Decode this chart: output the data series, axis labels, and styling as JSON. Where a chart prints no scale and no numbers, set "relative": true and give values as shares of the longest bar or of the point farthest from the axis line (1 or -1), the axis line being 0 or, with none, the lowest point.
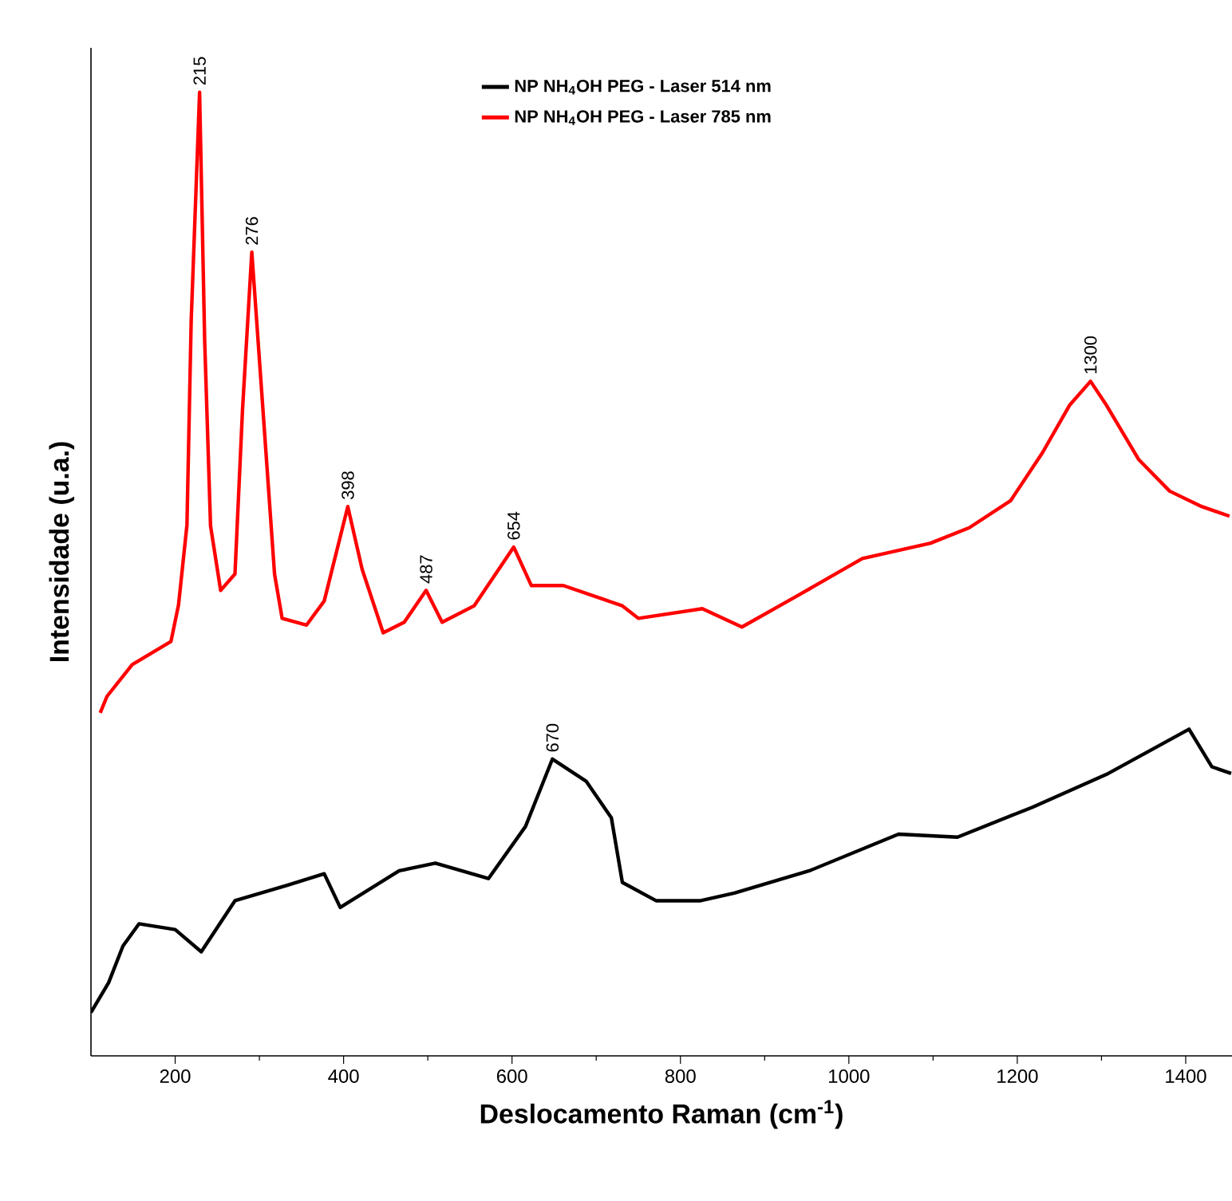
{
  "chart_data": {
    "type": "line",
    "relative": true,
    "xlabel": "Deslocamento Raman (cm$^{-1}$)",
    "ylabel": "Intensidade (u.a.)",
    "xlim": [
      100,
      1455
    ],
    "xticks": [
      200,
      400,
      600,
      800,
      1000,
      1200,
      1400
    ],
    "legend": "top",
    "series": [
      {
        "name": "NP NH$_{4}$OH PEG  - Laser 514 nm",
        "color": "#000000",
        "x": [
          100,
          121,
          138,
          157,
          200,
          231,
          271,
          333,
          377,
          396,
          466,
          509,
          572,
          616,
          648,
          688,
          718,
          731,
          771,
          824,
          864,
          953,
          1059,
          1129,
          1218,
          1308,
          1404,
          1431,
          1454
        ],
        "values": [
          0.045,
          0.076,
          0.114,
          0.137,
          0.131,
          0.108,
          0.161,
          0.177,
          0.189,
          0.154,
          0.192,
          0.2,
          0.184,
          0.238,
          0.308,
          0.285,
          0.247,
          0.18,
          0.161,
          0.161,
          0.169,
          0.192,
          0.23,
          0.227,
          0.258,
          0.293,
          0.339,
          0.3,
          0.293
        ]
      },
      {
        "name": "NP NH$_{4}$OH PEG  - Laser 785 nm",
        "color": "#ff0000",
        "x": [
          111,
          119,
          149,
          195,
          204,
          214,
          219,
          229,
          235,
          242,
          254,
          271,
          280,
          291,
          305,
          318,
          327,
          356,
          377,
          405,
          422,
          447,
          472,
          498,
          517,
          555,
          602,
          623,
          661,
          731,
          750,
          826,
          873,
          940,
          1016,
          1097,
          1143,
          1192,
          1230,
          1262,
          1287,
          1306,
          1344,
          1381,
          1419,
          1452
        ],
        "values": [
          0.356,
          0.373,
          0.406,
          0.43,
          0.468,
          0.551,
          0.762,
          1.0,
          0.743,
          0.55,
          0.483,
          0.5,
          0.671,
          0.834,
          0.661,
          0.5,
          0.454,
          0.447,
          0.472,
          0.57,
          0.505,
          0.439,
          0.45,
          0.483,
          0.45,
          0.467,
          0.528,
          0.488,
          0.488,
          0.467,
          0.454,
          0.464,
          0.445,
          0.478,
          0.516,
          0.532,
          0.548,
          0.576,
          0.626,
          0.675,
          0.7,
          0.675,
          0.619,
          0.586,
          0.57,
          0.56
        ]
      }
    ],
    "annotations": [
      {
        "text": "215",
        "x": 229,
        "y": 1.0
      },
      {
        "text": "276",
        "x": 291,
        "y": 0.834
      },
      {
        "text": "398",
        "x": 405,
        "y": 0.57
      },
      {
        "text": "487",
        "x": 498,
        "y": 0.483
      },
      {
        "text": "654",
        "x": 602,
        "y": 0.528
      },
      {
        "text": "1300",
        "x": 1287,
        "y": 0.7
      },
      {
        "text": "670",
        "x": 648,
        "y": 0.308
      }
    ]
  }
}
